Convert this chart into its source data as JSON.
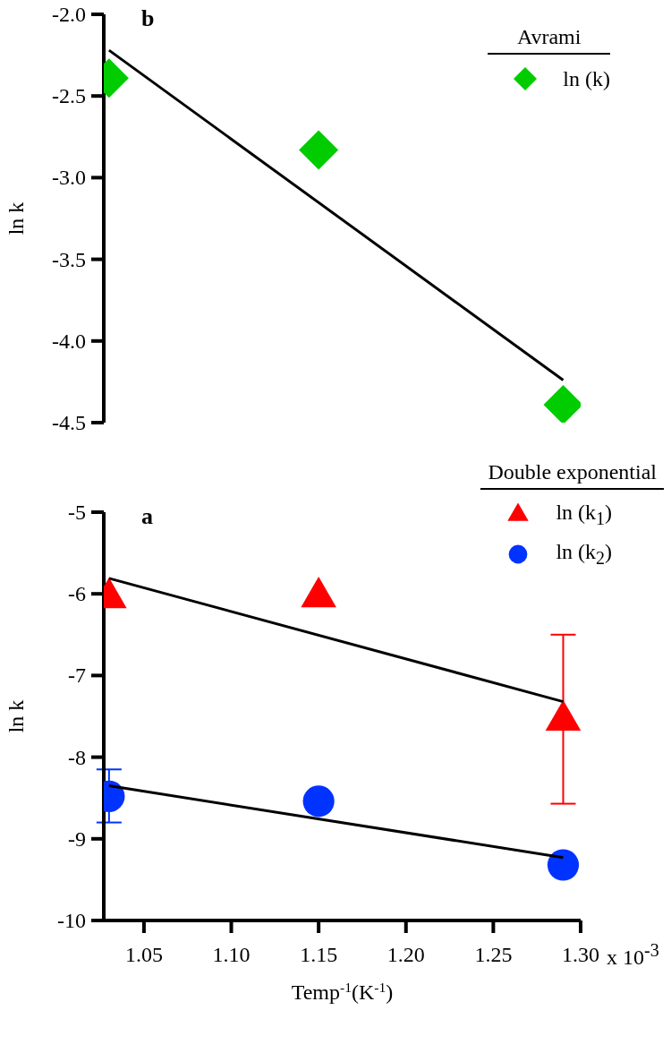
{
  "chart_data": [
    {
      "type": "scatter",
      "ylabel": "ln k",
      "legend_title": "Avrami",
      "legend": "top right",
      "annotations": [
        "b"
      ],
      "tick_labels": "y",
      "xlim": [
        1.027,
        1.3
      ],
      "ylim": [
        -4.5,
        -2.0
      ],
      "yticks": [
        {
          "value": -4.5,
          "label": "-4.5"
        },
        {
          "value": -4.0,
          "label": "-4.0"
        },
        {
          "value": -3.5,
          "label": "-3.5"
        },
        {
          "value": -3.0,
          "label": "-3.0"
        },
        {
          "value": -2.5,
          "label": "-2.5"
        },
        {
          "value": -2.0,
          "label": "-2.0"
        }
      ],
      "series": [
        {
          "name": "ln (k)",
          "color": "#00cc00",
          "marker": "diamond",
          "x": [
            1.03,
            1.15,
            1.29
          ],
          "values": [
            -2.39,
            -2.83,
            -4.39
          ]
        },
        {
          "type": "line",
          "color": "#000000",
          "x": [
            1.03,
            1.29
          ],
          "values": [
            -2.22,
            -4.24
          ]
        }
      ]
    },
    {
      "type": "scatter",
      "ylabel": "ln k",
      "xlabel": "Temp$^{-1}$(K$^{-1}$)",
      "legend_title": "Double exponential",
      "legend": "top right",
      "annotations": [
        "a",
        "x 10$^{-3}$"
      ],
      "xlim": [
        1.027,
        1.3
      ],
      "xticks": [
        1.05,
        {
          "value": 1.1,
          "label": "1.10"
        },
        1.15,
        {
          "value": 1.2,
          "label": "1.20"
        },
        1.25,
        {
          "value": 1.3,
          "label": "1.30"
        }
      ],
      "ylim": [
        -10,
        -5
      ],
      "yticks": [
        -10,
        -9,
        -8,
        -7,
        -6,
        -5
      ],
      "series": [
        {
          "name": "ln (k$_{1}$)",
          "color": "#ff0000",
          "marker": "triangle",
          "x": [
            1.03,
            1.15,
            1.29
          ],
          "values": [
            -6.05,
            -6.04,
            -7.55
          ],
          "errors": [
            null,
            null,
            [
              -8.57,
              -6.5
            ]
          ]
        },
        {
          "name": "ln (k$_{2}$)",
          "color": "#0033ff",
          "marker": "circle",
          "x": [
            1.03,
            1.15,
            1.29
          ],
          "values": [
            -8.48,
            -8.54,
            -9.32
          ],
          "errors": [
            [
              -8.8,
              -8.15
            ],
            null,
            null
          ]
        },
        {
          "type": "line",
          "color": "#000000",
          "x": [
            1.03,
            1.29
          ],
          "values": [
            -5.81,
            -7.32
          ]
        },
        {
          "type": "line",
          "color": "#000000",
          "x": [
            1.03,
            1.29
          ],
          "values": [
            -8.35,
            -9.23
          ]
        }
      ]
    }
  ]
}
